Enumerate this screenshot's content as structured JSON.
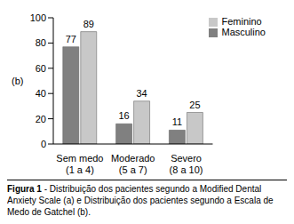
{
  "chart_data": {
    "type": "bar",
    "categories": [
      "Sem medo\n(1 a 4)",
      "Moderado\n(5 a 7)",
      "Severo\n(8 a 10)"
    ],
    "series": [
      {
        "name": "Masculino",
        "color": "#808080",
        "values": [
          77,
          16,
          11
        ]
      },
      {
        "name": "Feminino",
        "color": "#c8c8c8",
        "values": [
          89,
          34,
          25
        ]
      }
    ],
    "y_label": "(b)",
    "ylim": [
      0,
      100
    ],
    "yticks": [
      0,
      20,
      40,
      60,
      80,
      100
    ],
    "grid": false,
    "legend": "upper right",
    "data_labels": true,
    "caption": {
      "label": "Figura 1",
      "text": "- Distribuição dos pacientes segundo a Modified Dental Anxiety Scale (a) e Distribuição dos pacientes segundo a Escala de Medo de Gatchel (b)."
    }
  }
}
